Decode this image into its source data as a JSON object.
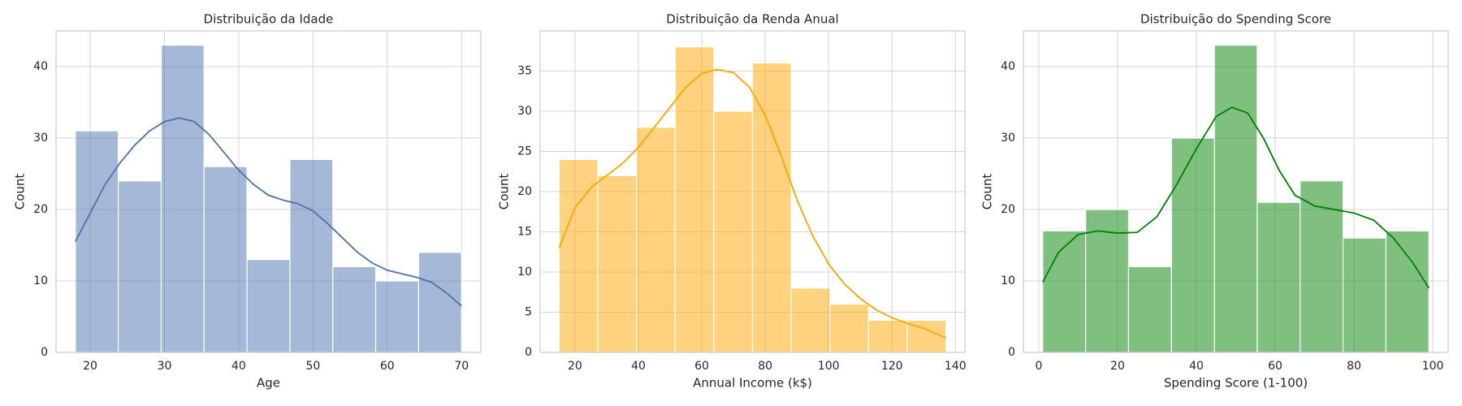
{
  "chart_data": [
    {
      "type": "histogram",
      "title": "Distribuição da Idade",
      "xlabel": "Age",
      "ylabel": "Count",
      "bins": [
        18,
        23.78,
        29.56,
        35.33,
        41.11,
        46.89,
        52.67,
        58.44,
        64.22,
        70
      ],
      "counts": [
        31,
        24,
        43,
        26,
        13,
        27,
        12,
        10,
        14
      ],
      "color": "#4c72b0",
      "kde": {
        "x": [
          18,
          20,
          22,
          24,
          26,
          28,
          30,
          32,
          34,
          36,
          38,
          40,
          42,
          44,
          46,
          48,
          50,
          52,
          54,
          56,
          58,
          60,
          62,
          64,
          66,
          68,
          70
        ],
        "y": [
          15.5,
          19.5,
          23.5,
          26.5,
          29,
          31,
          32.3,
          32.8,
          32.3,
          30.5,
          28,
          25.5,
          23.5,
          22,
          21.3,
          20.8,
          19.8,
          18,
          16,
          14,
          12.5,
          11.5,
          11,
          10.5,
          9.8,
          8.3,
          6.5
        ]
      },
      "xlim": [
        15.4,
        72.6
      ],
      "xticks": [
        20,
        30,
        40,
        50,
        60,
        70
      ],
      "ylim": [
        0,
        45
      ],
      "yticks": [
        0,
        10,
        20,
        30,
        40
      ],
      "grid": true
    },
    {
      "type": "histogram",
      "title": "Distribuição da Renda Anual",
      "xlabel": "Annual Income (k$)",
      "ylabel": "Count",
      "bins": [
        15,
        27.2,
        39.4,
        51.6,
        63.8,
        76,
        88.2,
        100.4,
        112.6,
        124.8,
        137
      ],
      "counts": [
        24,
        22,
        28,
        38,
        30,
        36,
        8,
        6,
        4,
        4
      ],
      "color": "#ffa500",
      "kde": {
        "x": [
          15,
          20,
          25,
          30,
          35,
          40,
          45,
          50,
          55,
          60,
          65,
          70,
          75,
          80,
          85,
          90,
          95,
          100,
          105,
          110,
          115,
          120,
          125,
          130,
          137
        ],
        "y": [
          13,
          18,
          20.5,
          22,
          23.5,
          25.5,
          28,
          30.5,
          33,
          34.7,
          35.2,
          34.8,
          33,
          29.5,
          24.5,
          19,
          14.5,
          11,
          8.5,
          6.7,
          5.3,
          4.3,
          3.6,
          3,
          1.8
        ]
      },
      "xlim": [
        9,
        143
      ],
      "xticks": [
        20,
        40,
        60,
        80,
        100,
        120,
        140
      ],
      "ylim": [
        0,
        40
      ],
      "yticks": [
        0,
        5,
        10,
        15,
        20,
        25,
        30,
        35
      ],
      "grid": true
    },
    {
      "type": "histogram",
      "title": "Distribuição do Spending Score",
      "xlabel": "Spending Score (1-100)",
      "ylabel": "Count",
      "bins": [
        1,
        11.89,
        22.78,
        33.67,
        44.56,
        55.44,
        66.33,
        77.22,
        88.11,
        99
      ],
      "counts": [
        17,
        20,
        12,
        30,
        43,
        21,
        24,
        16,
        17
      ],
      "color": "#008000",
      "kde": {
        "x": [
          1,
          5,
          10,
          15,
          20,
          25,
          30,
          35,
          40,
          45,
          49,
          53,
          57,
          61,
          65,
          70,
          75,
          80,
          85,
          90,
          95,
          99
        ],
        "y": [
          9.8,
          14,
          16.5,
          17,
          16.7,
          16.8,
          19,
          23.5,
          28.5,
          33,
          34.3,
          33.5,
          30,
          25.5,
          22,
          20.5,
          20,
          19.5,
          18.5,
          16,
          12.5,
          9
        ]
      },
      "xlim": [
        -3.9,
        103.9
      ],
      "xticks": [
        0,
        20,
        40,
        60,
        80,
        100
      ],
      "ylim": [
        0,
        45
      ],
      "yticks": [
        0,
        10,
        20,
        30,
        40
      ],
      "grid": true
    }
  ]
}
